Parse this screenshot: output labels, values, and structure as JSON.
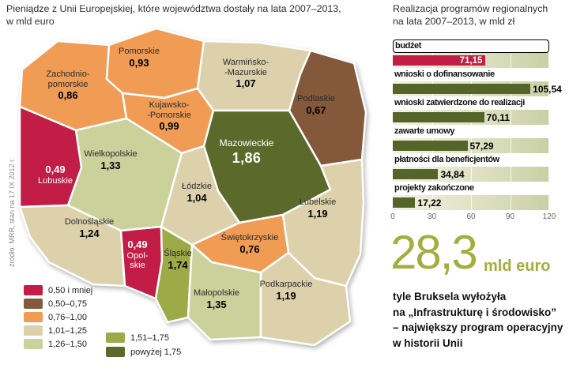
{
  "page": {
    "map_title": "Pieniądze z Unii Europejskiej, które województwa dostały na lata 2007–2013,\nw mld euro",
    "source_note": "źródło: MRR, stan na 17 IX 2012 r."
  },
  "palette": {
    "band1": "#c21d46",
    "band2": "#84583a",
    "band3": "#f09c55",
    "band4": "#dcd1ab",
    "band5": "#cbd19b",
    "band6": "#9cab48",
    "band7": "#5b6a2b",
    "bar_red": "#c21d46",
    "bar_green": "#55652a",
    "accent_olive": "#a2ae3e"
  },
  "map": {
    "regions": [
      {
        "name": "Pomorskie",
        "lines": [
          "Pomorskie"
        ],
        "value": "0,93",
        "band": "band3"
      },
      {
        "name": "Zachodniopomorskie",
        "lines": [
          "Zachodnio-",
          "pomorskie"
        ],
        "value": "0,86",
        "band": "band3"
      },
      {
        "name": "Warmińsko-Mazurskie",
        "lines": [
          "Warmińsko-",
          "-Mazurskie"
        ],
        "value": "1,07",
        "band": "band4"
      },
      {
        "name": "Podlaskie",
        "lines": [
          "Podlaskie"
        ],
        "value": "0,67",
        "band": "band2"
      },
      {
        "name": "Kujawsko-Pomorskie",
        "lines": [
          "Kujawsko-",
          "-Pomorskie"
        ],
        "value": "0,99",
        "band": "band3"
      },
      {
        "name": "Mazowieckie",
        "lines": [
          "Mazowieckie"
        ],
        "value": "1,86",
        "band": "band7"
      },
      {
        "name": "Wielkopolskie",
        "lines": [
          "Wielkopolskie"
        ],
        "value": "1,33",
        "band": "band5"
      },
      {
        "name": "Lubuskie",
        "lines": [
          "Lubuskie"
        ],
        "value": "0,49",
        "band": "band1"
      },
      {
        "name": "Łódzkie",
        "lines": [
          "Łódzkie"
        ],
        "value": "1,04",
        "band": "band4"
      },
      {
        "name": "Lubelskie",
        "lines": [
          "Lubelskie"
        ],
        "value": "1,19",
        "band": "band4"
      },
      {
        "name": "Dolnośląskie",
        "lines": [
          "Dolnośląskie"
        ],
        "value": "1,24",
        "band": "band4"
      },
      {
        "name": "Opolskie",
        "lines": [
          "Opol-",
          "skie"
        ],
        "value": "0,49",
        "band": "band1"
      },
      {
        "name": "Śląskie",
        "lines": [
          "Śląskie"
        ],
        "value": "1,74",
        "band": "band6"
      },
      {
        "name": "Świętokrzyskie",
        "lines": [
          "Świętokrzyskie"
        ],
        "value": "0,76",
        "band": "band3"
      },
      {
        "name": "Małopolskie",
        "lines": [
          "Małopolskie"
        ],
        "value": "1,35",
        "band": "band5"
      },
      {
        "name": "Podkarpackie",
        "lines": [
          "Podkarpackie"
        ],
        "value": "1,19",
        "band": "band4"
      }
    ],
    "legend": [
      {
        "label": "0,50 i mniej",
        "band": "band1"
      },
      {
        "label": "0,50–0,75",
        "band": "band2"
      },
      {
        "label": "0,76–1,00",
        "band": "band3"
      },
      {
        "label": "1,01–1,25",
        "band": "band4"
      },
      {
        "label": "1,26–1,50",
        "band": "band5"
      },
      {
        "label": "1,51–1,75",
        "band": "band6"
      },
      {
        "label": "powyżej 1,75",
        "band": "band7"
      }
    ]
  },
  "chart": {
    "title": "Realizacja programów regionalnych\nna lata 2007–2013, w mld zł"
  },
  "chart_data": [
    {
      "type": "bar",
      "orientation": "horizontal",
      "title": "Realizacja programów regionalnych na lata 2007–2013, w mld zł",
      "unit": "mld zł",
      "categories": [
        "budżet",
        "wnioski o dofinansowanie",
        "wnioski zatwierdzone do realizacji",
        "zawarte umowy",
        "płatności dla beneficjentów",
        "projekty zakończone"
      ],
      "values": [
        71.15,
        105.54,
        70.11,
        57.29,
        34.84,
        17.22
      ],
      "value_labels": [
        "71,15",
        "105,54",
        "70,11",
        "57,29",
        "34,84",
        "17,22"
      ],
      "colors": [
        "bar_red",
        "bar_green",
        "bar_green",
        "bar_green",
        "bar_green",
        "bar_green"
      ],
      "xlim": [
        0,
        120
      ],
      "xticks": [
        "0",
        "30",
        "60",
        "90",
        "120"
      ],
      "grid": true,
      "legend_position": "none"
    },
    {
      "type": "choropleth",
      "title": "Pieniądze z Unii Europejskiej, które województwa dostały na lata 2007–2013, w mld euro",
      "unit": "mld euro",
      "regions": [
        "Pomorskie",
        "Zachodniopomorskie",
        "Warmińsko-Mazurskie",
        "Podlaskie",
        "Kujawsko-Pomorskie",
        "Mazowieckie",
        "Wielkopolskie",
        "Lubuskie",
        "Łódzkie",
        "Lubelskie",
        "Dolnośląskie",
        "Opolskie",
        "Śląskie",
        "Świętokrzyskie",
        "Małopolskie",
        "Podkarpackie"
      ],
      "values": [
        0.93,
        0.86,
        1.07,
        0.67,
        0.99,
        1.86,
        1.33,
        0.49,
        1.04,
        1.19,
        1.24,
        0.49,
        1.74,
        0.76,
        1.35,
        1.19
      ],
      "bins": [
        "0,50 i mniej",
        "0,50–0,75",
        "0,76–1,00",
        "1,01–1,25",
        "1,26–1,50",
        "1,51–1,75",
        "powyżej 1,75"
      ]
    }
  ],
  "highlight": {
    "number": "28,3",
    "unit": "mld euro",
    "text": "tyle Bruksela wyłożyła\nna „Infrastrukturę i środowisko”\n– największy program operacyjny\nw historii Unii"
  }
}
